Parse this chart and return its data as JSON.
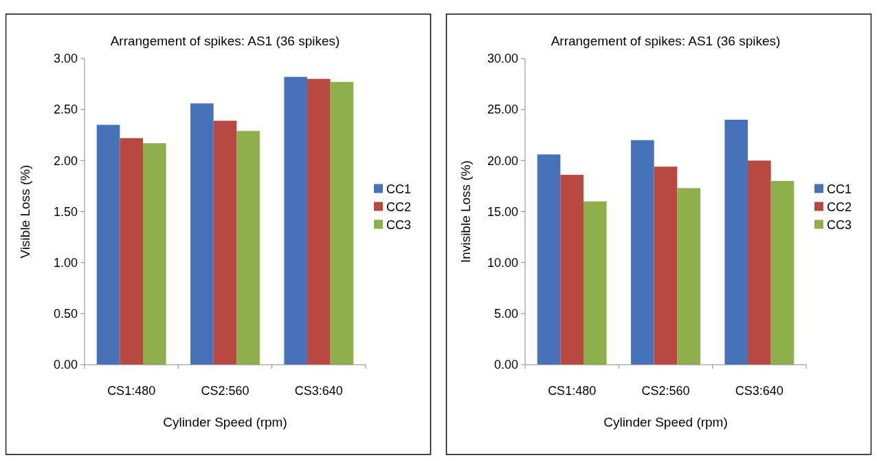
{
  "chart_data": [
    {
      "type": "bar",
      "title": "Arrangement of spikes: AS1 (36 spikes)",
      "xlabel": "Cylinder Speed (rpm)",
      "ylabel": "Visible Loss (%)",
      "categories": [
        "CS1:480",
        "CS2:560",
        "CS3:640"
      ],
      "series": [
        {
          "name": "CC1",
          "color": "#4673b8",
          "values": [
            2.35,
            2.56,
            2.82
          ]
        },
        {
          "name": "CC2",
          "color": "#b8473f",
          "values": [
            2.22,
            2.39,
            2.8
          ]
        },
        {
          "name": "CC3",
          "color": "#8fae4c",
          "values": [
            2.17,
            2.29,
            2.77
          ]
        }
      ],
      "ylim": [
        0,
        3
      ],
      "yticks": [
        {
          "value": 0,
          "label": "0.00"
        },
        {
          "value": 0.5,
          "label": "0.50"
        },
        {
          "value": 1,
          "label": "1.00"
        },
        {
          "value": 1.5,
          "label": "1.50"
        },
        {
          "value": 2,
          "label": "2.00"
        },
        {
          "value": 2.5,
          "label": "2.50"
        },
        {
          "value": 3,
          "label": "3.00"
        }
      ],
      "grid": false,
      "legend": "right"
    },
    {
      "type": "bar",
      "title": "Arrangement of spikes: AS1 (36 spikes)",
      "xlabel": "Cylinder Speed (rpm)",
      "ylabel": "Invisible Loss (%)",
      "categories": [
        "CS1:480",
        "CS2:560",
        "CS3:640"
      ],
      "series": [
        {
          "name": "CC1",
          "color": "#4673b8",
          "values": [
            20.6,
            22.0,
            24.0
          ]
        },
        {
          "name": "CC2",
          "color": "#b8473f",
          "values": [
            18.6,
            19.4,
            20.0
          ]
        },
        {
          "name": "CC3",
          "color": "#8fae4c",
          "values": [
            16.0,
            17.3,
            18.0
          ]
        }
      ],
      "ylim": [
        0,
        30
      ],
      "yticks": [
        {
          "value": 0,
          "label": "0.00"
        },
        {
          "value": 5,
          "label": "5.00"
        },
        {
          "value": 10,
          "label": "10.00"
        },
        {
          "value": 15,
          "label": "15.00"
        },
        {
          "value": 20,
          "label": "20.00"
        },
        {
          "value": 25,
          "label": "25.00"
        },
        {
          "value": 30,
          "label": "30.00"
        }
      ],
      "grid": false,
      "legend": "right"
    }
  ]
}
